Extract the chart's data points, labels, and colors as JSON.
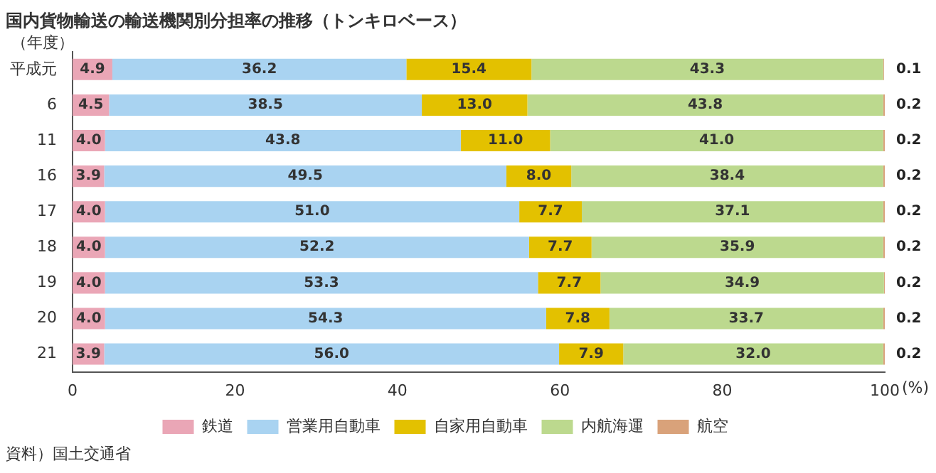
{
  "chart_data": {
    "type": "bar",
    "orientation": "horizontal",
    "stacked": true,
    "title": "国内貨物輸送の輸送機関別分担率の推移（トンキロベース）",
    "ylabel": "（年度）",
    "xlabel": "(%)",
    "categories": [
      "平成元",
      "6",
      "11",
      "16",
      "17",
      "18",
      "19",
      "20",
      "21"
    ],
    "series": [
      {
        "name": "鉄道",
        "color": "#eaa6b6",
        "values": [
          4.9,
          4.5,
          4.0,
          3.9,
          4.0,
          4.0,
          4.0,
          4.0,
          3.9
        ],
        "value_labels": [
          "4.9",
          "4.5",
          "4.0",
          "3.9",
          "4.0",
          "4.0",
          "4.0",
          "4.0",
          "3.9"
        ]
      },
      {
        "name": "営業用自動車",
        "color": "#a9d3f1",
        "values": [
          36.2,
          38.5,
          43.8,
          49.5,
          51.0,
          52.2,
          53.3,
          54.3,
          56.0
        ],
        "value_labels": [
          "36.2",
          "38.5",
          "43.8",
          "49.5",
          "51.0",
          "52.2",
          "53.3",
          "54.3",
          "56.0"
        ]
      },
      {
        "name": "自家用自動車",
        "color": "#e3c100",
        "values": [
          15.4,
          13.0,
          11.0,
          8.0,
          7.7,
          7.7,
          7.7,
          7.8,
          7.9
        ],
        "value_labels": [
          "15.4",
          "13.0",
          "11.0",
          "8.0",
          "7.7",
          "7.7",
          "7.7",
          "7.8",
          "7.9"
        ]
      },
      {
        "name": "内航海運",
        "color": "#bcd98e",
        "values": [
          43.3,
          43.8,
          41.0,
          38.4,
          37.1,
          35.9,
          34.9,
          33.7,
          32.0
        ],
        "value_labels": [
          "43.3",
          "43.8",
          "41.0",
          "38.4",
          "37.1",
          "35.9",
          "34.9",
          "33.7",
          "32.0"
        ]
      },
      {
        "name": "航空",
        "color": "#d9a27a",
        "values": [
          0.1,
          0.2,
          0.2,
          0.2,
          0.2,
          0.2,
          0.2,
          0.2,
          0.2
        ],
        "value_labels": [
          "0.1",
          "0.2",
          "0.2",
          "0.2",
          "0.2",
          "0.2",
          "0.2",
          "0.2",
          "0.2"
        ]
      }
    ],
    "xlim": [
      0,
      100
    ],
    "xticks": [
      0,
      20,
      40,
      60,
      80,
      100
    ],
    "grid": false,
    "legend": "bottom",
    "annotations": [
      "資料）国土交通省"
    ]
  }
}
